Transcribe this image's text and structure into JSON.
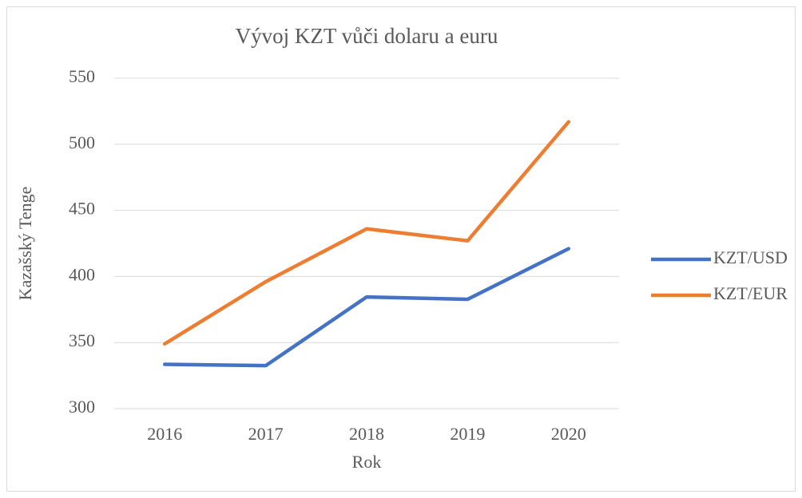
{
  "chart_data": {
    "type": "line",
    "title": "Vývoj KZT vůči dolaru a euru",
    "x_label": "Rok",
    "y_label": "Kazašský Tenge",
    "categories": [
      "2016",
      "2017",
      "2018",
      "2019",
      "2020"
    ],
    "series": [
      {
        "name": "KZT/USD",
        "color": "#4472c4",
        "values": [
          333.5,
          332.5,
          384.5,
          382.7,
          421
        ]
      },
      {
        "name": "KZT/EUR",
        "color": "#ed7d31",
        "values": [
          349,
          396,
          436,
          427,
          517
        ]
      }
    ],
    "ylim": [
      300,
      550
    ],
    "yticks": [
      300,
      350,
      400,
      450,
      500,
      550
    ],
    "grid": true,
    "legend": "right"
  }
}
